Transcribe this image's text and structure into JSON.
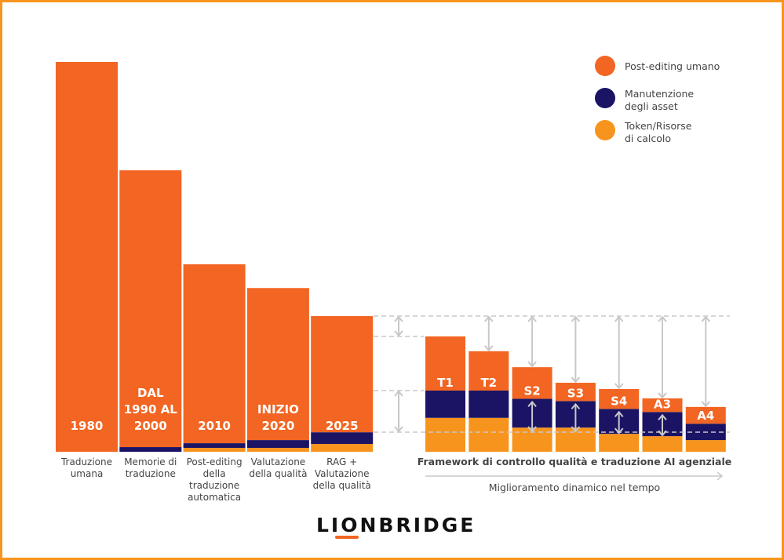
{
  "chart_data": {
    "type": "bar",
    "stacked": true,
    "title": "",
    "xlabel": "",
    "ylabel": "",
    "grid": false,
    "legend_position": "top-right",
    "colors": {
      "post_editing": "#F26522",
      "asset_maintenance": "#1B1464",
      "tokens": "#F7941D",
      "guide": "#C8C8C8"
    },
    "legend": [
      {
        "key": "post_editing",
        "lines": [
          "Post-editing umano"
        ]
      },
      {
        "key": "asset_maintenance",
        "lines": [
          "Manutenzione",
          "degli asset"
        ]
      },
      {
        "key": "tokens",
        "lines": [
          "Token/Risorse",
          "di calcolo"
        ]
      }
    ],
    "historical": [
      {
        "label": [
          "1980"
        ],
        "category": [
          "Traduzione",
          "umana"
        ],
        "tokens": 0,
        "asset_maintenance": 0,
        "post_editing": 100
      },
      {
        "label": [
          "DAL",
          "1990 AL",
          "2000"
        ],
        "category": [
          "Memorie di",
          "traduzione"
        ],
        "tokens": 0,
        "asset_maintenance": 1.2,
        "post_editing": 71
      },
      {
        "label": [
          "2010"
        ],
        "category": [
          "Post-editing",
          "della",
          "traduzione",
          "automatica"
        ],
        "tokens": 1,
        "asset_maintenance": 1.2,
        "post_editing": 45.9
      },
      {
        "label": [
          "INIZIO",
          "2020"
        ],
        "category": [
          "Valutazione",
          "della qualità"
        ],
        "tokens": 1,
        "asset_maintenance": 2,
        "post_editing": 39
      },
      {
        "label": [
          "2025"
        ],
        "category": [
          "RAG +",
          "Valutazione",
          "della qualità"
        ],
        "tokens": 2,
        "asset_maintenance": 3,
        "post_editing": 29.8
      }
    ],
    "agentic": [
      {
        "label": "T1",
        "tokens": 8.7,
        "asset_maintenance": 7,
        "post_editing": 13.9
      },
      {
        "label": "T2",
        "tokens": 8.7,
        "asset_maintenance": 7,
        "post_editing": 10.1
      },
      {
        "label": "S2",
        "tokens": 6.2,
        "asset_maintenance": 7.4,
        "post_editing": 8.1
      },
      {
        "label": "S3",
        "tokens": 6.2,
        "asset_maintenance": 6.8,
        "post_editing": 4.7
      },
      {
        "label": "S4",
        "tokens": 4.6,
        "asset_maintenance": 6.4,
        "post_editing": 5.1
      },
      {
        "label": "A3",
        "tokens": 4,
        "asset_maintenance": 6.2,
        "post_editing": 3.5
      },
      {
        "label": "A4",
        "tokens": 3,
        "asset_maintenance": 4.2,
        "post_editing": 4.3
      }
    ],
    "agentic_group_label": "Framework di controllo qualità e traduzione AI agenziale",
    "time_arrow_label": "Miglioramento dinamico nel tempo"
  },
  "logo": "LIONBRIDGE"
}
